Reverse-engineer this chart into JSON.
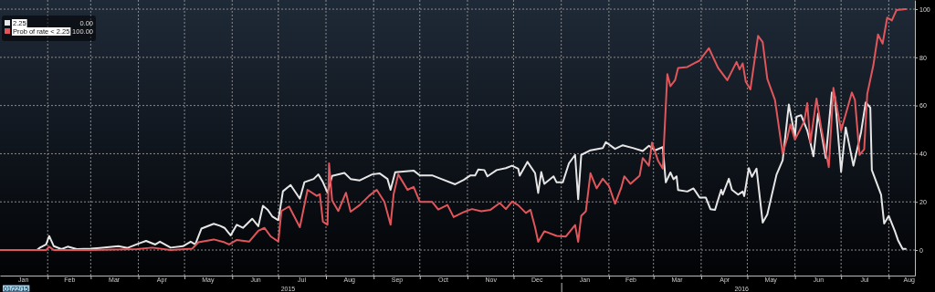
{
  "chart_data": {
    "type": "line",
    "xlim": [
      "2015-01-01",
      "2016-08-18"
    ],
    "ylim": [
      -10.6,
      103.8
    ],
    "yticks": [
      0,
      20,
      40,
      60,
      80,
      100
    ],
    "xticks": [
      {
        "value": "2015-01-16",
        "label": "Jan"
      },
      {
        "value": "2015-02-01",
        "label": null
      },
      {
        "value": "2015-02-15",
        "label": "Feb"
      },
      {
        "value": "2015-03-01",
        "label": null
      },
      {
        "value": "2015-03-16",
        "label": "Mar"
      },
      {
        "value": "2015-04-01",
        "label": null
      },
      {
        "value": "2015-04-16",
        "label": "Apr"
      },
      {
        "value": "2015-05-01",
        "label": null
      },
      {
        "value": "2015-05-16",
        "label": "May"
      },
      {
        "value": "2015-06-01",
        "label": null
      },
      {
        "value": "2015-06-16",
        "label": "Jun"
      },
      {
        "value": "2015-07-01",
        "label": null
      },
      {
        "value": "2015-07-16",
        "label": "Jul"
      },
      {
        "value": "2015-08-01",
        "label": null
      },
      {
        "value": "2015-08-16",
        "label": "Aug"
      },
      {
        "value": "2015-09-01",
        "label": null
      },
      {
        "value": "2015-09-16",
        "label": "Sep"
      },
      {
        "value": "2015-10-01",
        "label": null
      },
      {
        "value": "2015-10-16",
        "label": "Oct"
      },
      {
        "value": "2015-11-01",
        "label": null
      },
      {
        "value": "2015-11-16",
        "label": "Nov"
      },
      {
        "value": "2015-12-01",
        "label": null
      },
      {
        "value": "2015-12-16",
        "label": "Dec"
      },
      {
        "value": "2016-01-01",
        "label": null
      },
      {
        "value": "2016-01-16",
        "label": "Jan"
      },
      {
        "value": "2016-02-01",
        "label": null
      },
      {
        "value": "2016-02-15",
        "label": "Feb"
      },
      {
        "value": "2016-03-01",
        "label": null
      },
      {
        "value": "2016-03-16",
        "label": "Mar"
      },
      {
        "value": "2016-04-01",
        "label": null
      },
      {
        "value": "2016-04-16",
        "label": "Apr"
      },
      {
        "value": "2016-05-01",
        "label": null
      },
      {
        "value": "2016-05-16",
        "label": "May"
      },
      {
        "value": "2016-06-01",
        "label": null
      },
      {
        "value": "2016-06-16",
        "label": "Jun"
      },
      {
        "value": "2016-07-01",
        "label": null
      },
      {
        "value": "2016-07-16",
        "label": "Jul"
      },
      {
        "value": "2016-08-01",
        "label": null
      },
      {
        "value": "2016-08-14",
        "label": "Aug"
      }
    ],
    "x2lim": [
      "2015-01-01",
      "2016-08-18"
    ],
    "x2ticks": [
      {
        "value": "2015-07-07",
        "label": "2015"
      },
      {
        "value": "2016-01-01",
        "label": null
      },
      {
        "value": "2016-04-27",
        "label": "2016"
      }
    ],
    "grid": true,
    "legend": "top left",
    "annotations": [
      "0.00",
      "100.00",
      "01/22/15"
    ],
    "series": [
      {
        "name": "2.25",
        "color": "#e6e6e6",
        "x": [
          "2015-01-01",
          "2015-01-25",
          "2015-01-27",
          "2015-01-31",
          "2015-02-02",
          "2015-02-05",
          "2015-02-10",
          "2015-02-14",
          "2015-02-20",
          "2015-03-01",
          "2015-03-07",
          "2015-03-19",
          "2015-03-25",
          "2015-04-02",
          "2015-04-06",
          "2015-04-12",
          "2015-04-15",
          "2015-04-22",
          "2015-04-30",
          "2015-05-05",
          "2015-05-08",
          "2015-05-12",
          "2015-05-20",
          "2015-05-24",
          "2015-05-27",
          "2015-05-31",
          "2015-06-04",
          "2015-06-08",
          "2015-06-14",
          "2015-06-18",
          "2015-06-21",
          "2015-06-24",
          "2015-06-27",
          "2015-07-01",
          "2015-07-04",
          "2015-07-09",
          "2015-07-15",
          "2015-07-18",
          "2015-07-24",
          "2015-07-27",
          "2015-07-30",
          "2015-08-02",
          "2015-08-05",
          "2015-08-13",
          "2015-08-17",
          "2015-08-23",
          "2015-08-31",
          "2015-09-05",
          "2015-09-10",
          "2015-09-12",
          "2015-09-15",
          "2015-09-27",
          "2015-10-01",
          "2015-10-09",
          "2015-10-15",
          "2015-10-24",
          "2015-10-29",
          "2015-11-03",
          "2015-11-06",
          "2015-11-08",
          "2015-11-12",
          "2015-11-14",
          "2015-11-20",
          "2015-11-26",
          "2015-11-30",
          "2015-12-04",
          "2015-12-05",
          "2015-12-10",
          "2015-12-15",
          "2015-12-17",
          "2015-12-19",
          "2015-12-21",
          "2015-12-27",
          "2015-12-29",
          "2016-01-02",
          "2016-01-06",
          "2016-01-10",
          "2016-01-12",
          "2016-01-14",
          "2016-01-20",
          "2016-01-28",
          "2016-01-30",
          "2016-02-05",
          "2016-02-10",
          "2016-02-17",
          "2016-02-23",
          "2016-02-27",
          "2016-03-02",
          "2016-03-07",
          "2016-03-09",
          "2016-03-12",
          "2016-03-14",
          "2016-03-16",
          "2016-03-17",
          "2016-03-23",
          "2016-03-27",
          "2016-03-31",
          "2016-04-04",
          "2016-04-07",
          "2016-04-10",
          "2016-04-14",
          "2016-04-15",
          "2016-04-19",
          "2016-04-21",
          "2016-04-25",
          "2016-04-28",
          "2016-04-29",
          "2016-05-02",
          "2016-05-04",
          "2016-05-07",
          "2016-05-11",
          "2016-05-14",
          "2016-05-20",
          "2016-05-24",
          "2016-05-28",
          "2016-06-01",
          "2016-06-02",
          "2016-06-05",
          "2016-06-09",
          "2016-06-11",
          "2016-06-13",
          "2016-06-16",
          "2016-06-21",
          "2016-06-25",
          "2016-06-27",
          "2016-07-01",
          "2016-07-04",
          "2016-07-09",
          "2016-07-14",
          "2016-07-17",
          "2016-07-20",
          "2016-07-21",
          "2016-07-27",
          "2016-07-29",
          "2016-08-01",
          "2016-08-05",
          "2016-08-07",
          "2016-08-10",
          "2016-08-12"
        ],
        "values": [
          0,
          0,
          1,
          2.3,
          5.8,
          1.6,
          0.4,
          1.4,
          0.4,
          0.6,
          0.9,
          1.6,
          0.9,
          2.9,
          3.8,
          2.3,
          3.5,
          1,
          1.6,
          3.5,
          2.3,
          8.9,
          10.9,
          10.1,
          9.2,
          6.1,
          10.5,
          9.2,
          13,
          9.9,
          18.4,
          16.8,
          14,
          12.4,
          24.4,
          27,
          21.3,
          28.2,
          29.5,
          31.4,
          28.2,
          23.8,
          30.8,
          32,
          29.5,
          28.9,
          31.4,
          31.8,
          29.5,
          25,
          32.3,
          33,
          31,
          31,
          29.5,
          27.3,
          28.9,
          31,
          31,
          33.4,
          33.2,
          30.6,
          33.2,
          34,
          35,
          33.8,
          30.9,
          36.6,
          31.9,
          23.7,
          32.4,
          27.5,
          30.6,
          28.1,
          28.1,
          36,
          39.5,
          21.1,
          39.5,
          41.4,
          42.3,
          44.8,
          42,
          43.5,
          42.3,
          41.1,
          43.3,
          41.4,
          42.7,
          28.1,
          32.2,
          29.4,
          30.6,
          24.9,
          24.3,
          25.6,
          21.8,
          21.8,
          17,
          16.7,
          25,
          23,
          29.6,
          25,
          23,
          24.3,
          22.4,
          34,
          30.4,
          33.8,
          11.4,
          14.8,
          31.3,
          37.3,
          60.4,
          47.1,
          55.3,
          56,
          49.6,
          44.6,
          38.9,
          56.6,
          38.2,
          65.4,
          63.5,
          32.5,
          50.9,
          35,
          49,
          61.3,
          59.1,
          33.2,
          23,
          11,
          14.2,
          7.8,
          4.1,
          0.5,
          0.5
        ]
      },
      {
        "name": "Prob of rate < 2.25",
        "color": "#e0565b",
        "x": [
          "2015-01-01",
          "2015-01-31",
          "2015-02-02",
          "2015-02-05",
          "2015-03-01",
          "2015-03-31",
          "2015-04-10",
          "2015-04-22",
          "2015-05-06",
          "2015-05-10",
          "2015-05-20",
          "2015-05-27",
          "2015-05-30",
          "2015-06-04",
          "2015-06-12",
          "2015-06-18",
          "2015-06-22",
          "2015-06-26",
          "2015-07-01",
          "2015-07-03",
          "2015-07-08",
          "2015-07-15",
          "2015-07-20",
          "2015-07-26",
          "2015-07-28",
          "2015-07-30",
          "2015-08-02",
          "2015-08-03",
          "2015-08-05",
          "2015-08-09",
          "2015-08-14",
          "2015-08-17",
          "2015-08-23",
          "2015-08-29",
          "2015-09-03",
          "2015-09-08",
          "2015-09-12",
          "2015-09-14",
          "2015-09-17",
          "2015-09-23",
          "2015-09-27",
          "2015-10-01",
          "2015-10-09",
          "2015-10-13",
          "2015-10-19",
          "2015-10-23",
          "2015-10-29",
          "2015-11-03",
          "2015-11-04",
          "2015-11-10",
          "2015-11-16",
          "2015-11-22",
          "2015-11-26",
          "2015-11-30",
          "2015-12-04",
          "2015-12-09",
          "2015-12-12",
          "2015-12-15",
          "2015-12-17",
          "2015-12-21",
          "2015-12-29",
          "2016-01-04",
          "2016-01-10",
          "2016-01-12",
          "2016-01-14",
          "2016-01-17",
          "2016-01-20",
          "2016-01-24",
          "2016-01-28",
          "2016-02-01",
          "2016-02-05",
          "2016-02-09",
          "2016-02-11",
          "2016-02-15",
          "2016-02-21",
          "2016-02-23",
          "2016-02-27",
          "2016-02-29",
          "2016-03-04",
          "2016-03-07",
          "2016-03-10",
          "2016-03-12",
          "2016-03-15",
          "2016-03-17",
          "2016-03-23",
          "2016-03-31",
          "2016-04-06",
          "2016-04-12",
          "2016-04-18",
          "2016-04-24",
          "2016-04-26",
          "2016-04-28",
          "2016-04-30",
          "2016-05-03",
          "2016-05-08",
          "2016-05-11",
          "2016-05-14",
          "2016-05-19",
          "2016-05-24",
          "2016-05-27",
          "2016-05-29",
          "2016-06-01",
          "2016-06-07",
          "2016-06-09",
          "2016-06-11",
          "2016-06-15",
          "2016-06-18",
          "2016-06-23",
          "2016-06-26",
          "2016-07-01",
          "2016-07-08",
          "2016-07-10",
          "2016-07-13",
          "2016-07-16",
          "2016-07-18",
          "2016-07-22",
          "2016-07-25",
          "2016-07-28",
          "2016-07-31",
          "2016-08-03",
          "2016-08-06",
          "2016-08-12"
        ],
        "values": [
          0,
          0,
          1.4,
          0,
          0,
          0.4,
          1,
          0,
          0.6,
          3.2,
          4.4,
          3.2,
          2.3,
          4.2,
          3.5,
          8,
          9.2,
          5.7,
          3.5,
          16.2,
          18.1,
          9.5,
          25,
          22.5,
          23.2,
          11.8,
          10.5,
          36,
          20.6,
          16.2,
          23.8,
          15.9,
          18.7,
          22.5,
          25,
          20,
          10.5,
          23.2,
          31.4,
          25,
          26.2,
          20,
          20,
          16.8,
          18.7,
          13.7,
          15.6,
          16.8,
          17,
          16.1,
          16.7,
          19.5,
          17,
          20.1,
          18.6,
          15.4,
          16.7,
          9.4,
          3.4,
          7.8,
          5.9,
          5.6,
          10.4,
          3.4,
          14.2,
          16.1,
          31.9,
          25.6,
          29.6,
          26.6,
          19.2,
          25.9,
          30.6,
          27.5,
          30.9,
          38.2,
          35,
          44.6,
          37,
          33.8,
          73,
          68,
          70.5,
          75.6,
          76,
          78.7,
          83.8,
          75.6,
          70.5,
          78.1,
          75,
          77.5,
          69.9,
          66.7,
          88.9,
          86.3,
          71.1,
          62.3,
          40.1,
          46.5,
          52.2,
          45.8,
          53.4,
          61,
          44.6,
          62.9,
          50.9,
          34.4,
          67.3,
          49.6,
          65.4,
          62.3,
          39.5,
          41.8,
          64.8,
          76.8,
          89.5,
          85.7,
          96.5,
          95.3,
          99.6,
          100
        ]
      }
    ]
  }
}
